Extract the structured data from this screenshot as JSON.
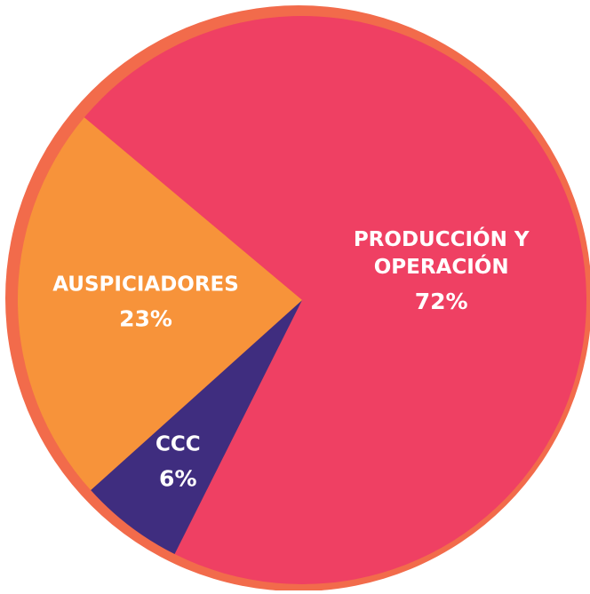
{
  "chart_data": {
    "type": "pie",
    "categories": [
      "PRODUCCIÓN Y OPERACIÓN",
      "CCC",
      "AUSPICIADORES"
    ],
    "values": [
      72,
      6,
      23
    ],
    "value_labels": [
      "72%",
      "6%",
      "23%"
    ],
    "colors": [
      "#ef4063",
      "#3f2d7f",
      "#f7933a"
    ]
  }
}
